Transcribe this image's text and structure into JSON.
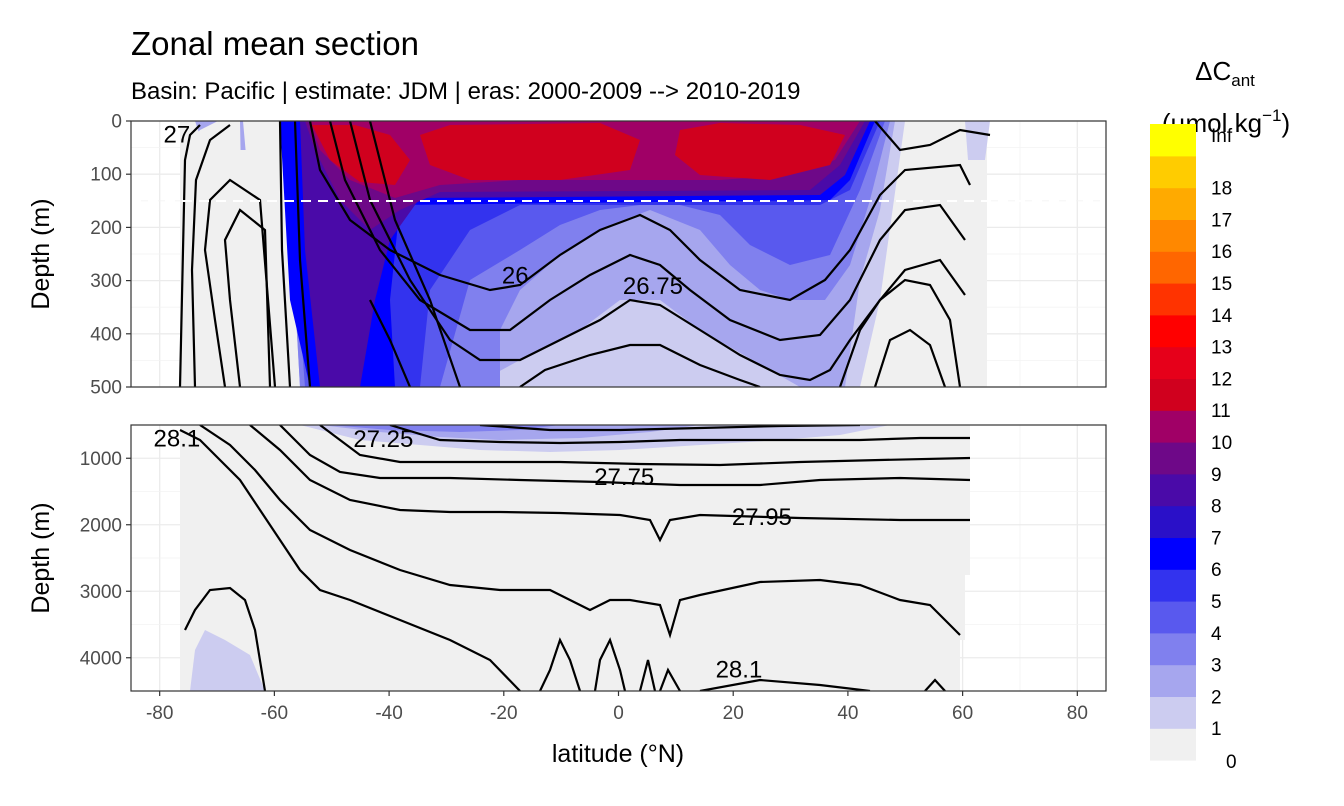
{
  "chart_data": {
    "type": "heatmap",
    "title": "Zonal mean section",
    "subtitle": "Basin: Pacific | estimate: JDM  | eras: 2000-2009 --> 2010-2019",
    "xlabel": "latitude (°N)",
    "ylabel": "Depth (m)",
    "xlim": [
      -85,
      85
    ],
    "x_ticks": [
      "-80",
      "-60",
      "-40",
      "-20",
      "0",
      "20",
      "40",
      "60",
      "80"
    ],
    "x_tick_values": [
      -80,
      -60,
      -40,
      -20,
      0,
      20,
      40,
      60,
      80
    ],
    "panels": [
      {
        "name": "upper",
        "ylim": [
          0,
          500
        ],
        "y_ticks": [
          "0",
          "100",
          "200",
          "300",
          "400",
          "500"
        ],
        "y_tick_values": [
          0,
          100,
          200,
          300,
          400,
          500
        ],
        "reference_line_depth": 150,
        "contour_labels": [
          {
            "text": "26",
            "x": -18,
            "y": 305
          },
          {
            "text": "26.75",
            "x": 6,
            "y": 325
          },
          {
            "text": "27",
            "x": -77,
            "y": 40
          }
        ]
      },
      {
        "name": "lower",
        "ylim": [
          500,
          4500
        ],
        "y_ticks": [
          "1000",
          "2000",
          "3000",
          "4000"
        ],
        "y_tick_values": [
          1000,
          2000,
          3000,
          4000
        ],
        "contour_labels": [
          {
            "text": "28.1",
            "x": -77,
            "y": 820
          },
          {
            "text": "27.25",
            "x": -41,
            "y": 830
          },
          {
            "text": "27.75",
            "x": 1,
            "y": 1400
          },
          {
            "text": "27.95",
            "x": 25,
            "y": 2000
          },
          {
            "text": "28.1",
            "x": 21,
            "y": 4300
          }
        ]
      }
    ],
    "legend": {
      "title_main": "ΔC",
      "title_sub": "ant",
      "unit_main": "(µmol kg",
      "unit_sup": "−1",
      "unit_end": ")",
      "position": "right",
      "levels": [
        "0",
        "1",
        "2",
        "3",
        "4",
        "5",
        "6",
        "7",
        "8",
        "9",
        "10",
        "11",
        "12",
        "13",
        "14",
        "15",
        "16",
        "17",
        "18",
        "Inf"
      ],
      "colors": [
        "#f0f0f0",
        "#ccccf0",
        "#a6a6ee",
        "#8080ee",
        "#5959ee",
        "#3333ee",
        "#0000ff",
        "#2a10c8",
        "#4a0aa8",
        "#6e0888",
        "#a00066",
        "#d0001e",
        "#e6001a",
        "#ff0000",
        "#ff3300",
        "#ff6600",
        "#ff8800",
        "#ffaa00",
        "#ffcc00",
        "#ffff00"
      ]
    }
  }
}
